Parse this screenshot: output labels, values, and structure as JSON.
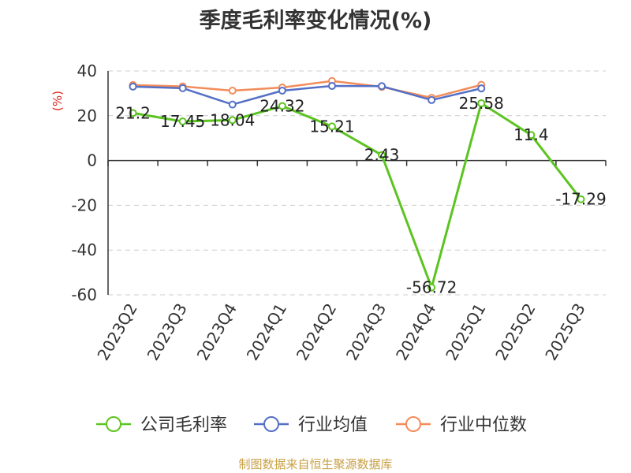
{
  "chart_data": {
    "type": "line",
    "title": "季度毛利率变化情况(%)",
    "ylabel": "(%)",
    "xlabel": "",
    "categories": [
      "2023Q2",
      "2023Q3",
      "2023Q4",
      "2024Q1",
      "2024Q2",
      "2024Q3",
      "2024Q4",
      "2025Q1",
      "2025Q2",
      "2025Q3"
    ],
    "yticks": [
      "40",
      "20",
      "0",
      "-20",
      "-40",
      "-60"
    ],
    "ylim": [
      -60,
      40
    ],
    "grid": true,
    "legend_position": "bottom",
    "series": [
      {
        "name": "公司毛利率",
        "color": "#5cc421",
        "values": [
          21.2,
          17.45,
          18.04,
          24.32,
          15.21,
          2.43,
          -56.72,
          25.58,
          11.4,
          -17.29
        ],
        "labels": [
          "21.2",
          "17.45",
          "18.04",
          "24.32",
          "15.21",
          "2.43",
          "-56.72",
          "25.58",
          "11.4",
          "-17.29"
        ]
      },
      {
        "name": "行业均值",
        "color": "#5470c6",
        "values": [
          33.0,
          32.3,
          25.0,
          31.2,
          33.3,
          33.2,
          27.0,
          32.2,
          null,
          null
        ]
      },
      {
        "name": "行业中位数",
        "color": "#f28c5a",
        "values": [
          33.7,
          33.1,
          31.2,
          32.6,
          35.5,
          32.9,
          28.0,
          33.8,
          null,
          null
        ]
      }
    ]
  },
  "footer": "制图数据来自恒生聚源数据库"
}
